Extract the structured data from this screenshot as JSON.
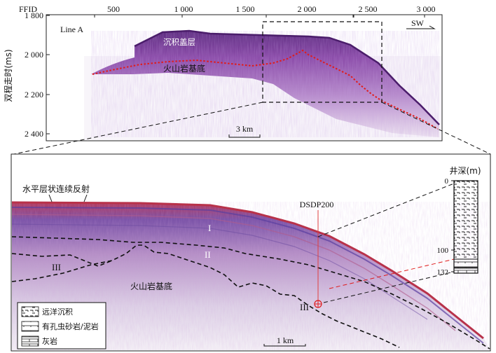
{
  "top_panel": {
    "line_label": "Line A",
    "direction_label": "SW",
    "ffid_axis": {
      "title": "FFID",
      "ticks": [
        "500",
        "1 000",
        "1 500",
        "2 000",
        "2 500",
        "3 000"
      ]
    },
    "y_axis": {
      "title": "双程走时(ms)",
      "ticks": [
        "1 800",
        "2 000",
        "2 200",
        "2 400"
      ]
    },
    "labels": {
      "sediment_cover": "沉积盖层",
      "volcanic_basement": "火山岩基底"
    },
    "scale_bar": "3 km"
  },
  "bottom_panel": {
    "labels": {
      "horizontal_reflection": "水平层状连续反射",
      "volcanic_basement": "火山岩基底",
      "well": "DSDP200",
      "unit_I": "I",
      "unit_II": "II",
      "unit_III_left": "III",
      "unit_III_well": "III"
    },
    "scale_bar": "1 km",
    "well_column": {
      "title": "井深(m)",
      "ticks": [
        "0",
        "100",
        "132"
      ]
    },
    "legend": [
      {
        "label": "远洋沉积",
        "pattern": "pelagic"
      },
      {
        "label": "有孔虫砂岩/泥岩",
        "pattern": "foram"
      },
      {
        "label": "灰岩",
        "pattern": "limestone"
      }
    ]
  },
  "colors": {
    "seismic_purple": "#7a3a9a",
    "seismic_red": "#c8374a",
    "seismic_blue": "#4a52a8",
    "basement_line": "#e01b1b",
    "dashed_outline": "#111111"
  }
}
